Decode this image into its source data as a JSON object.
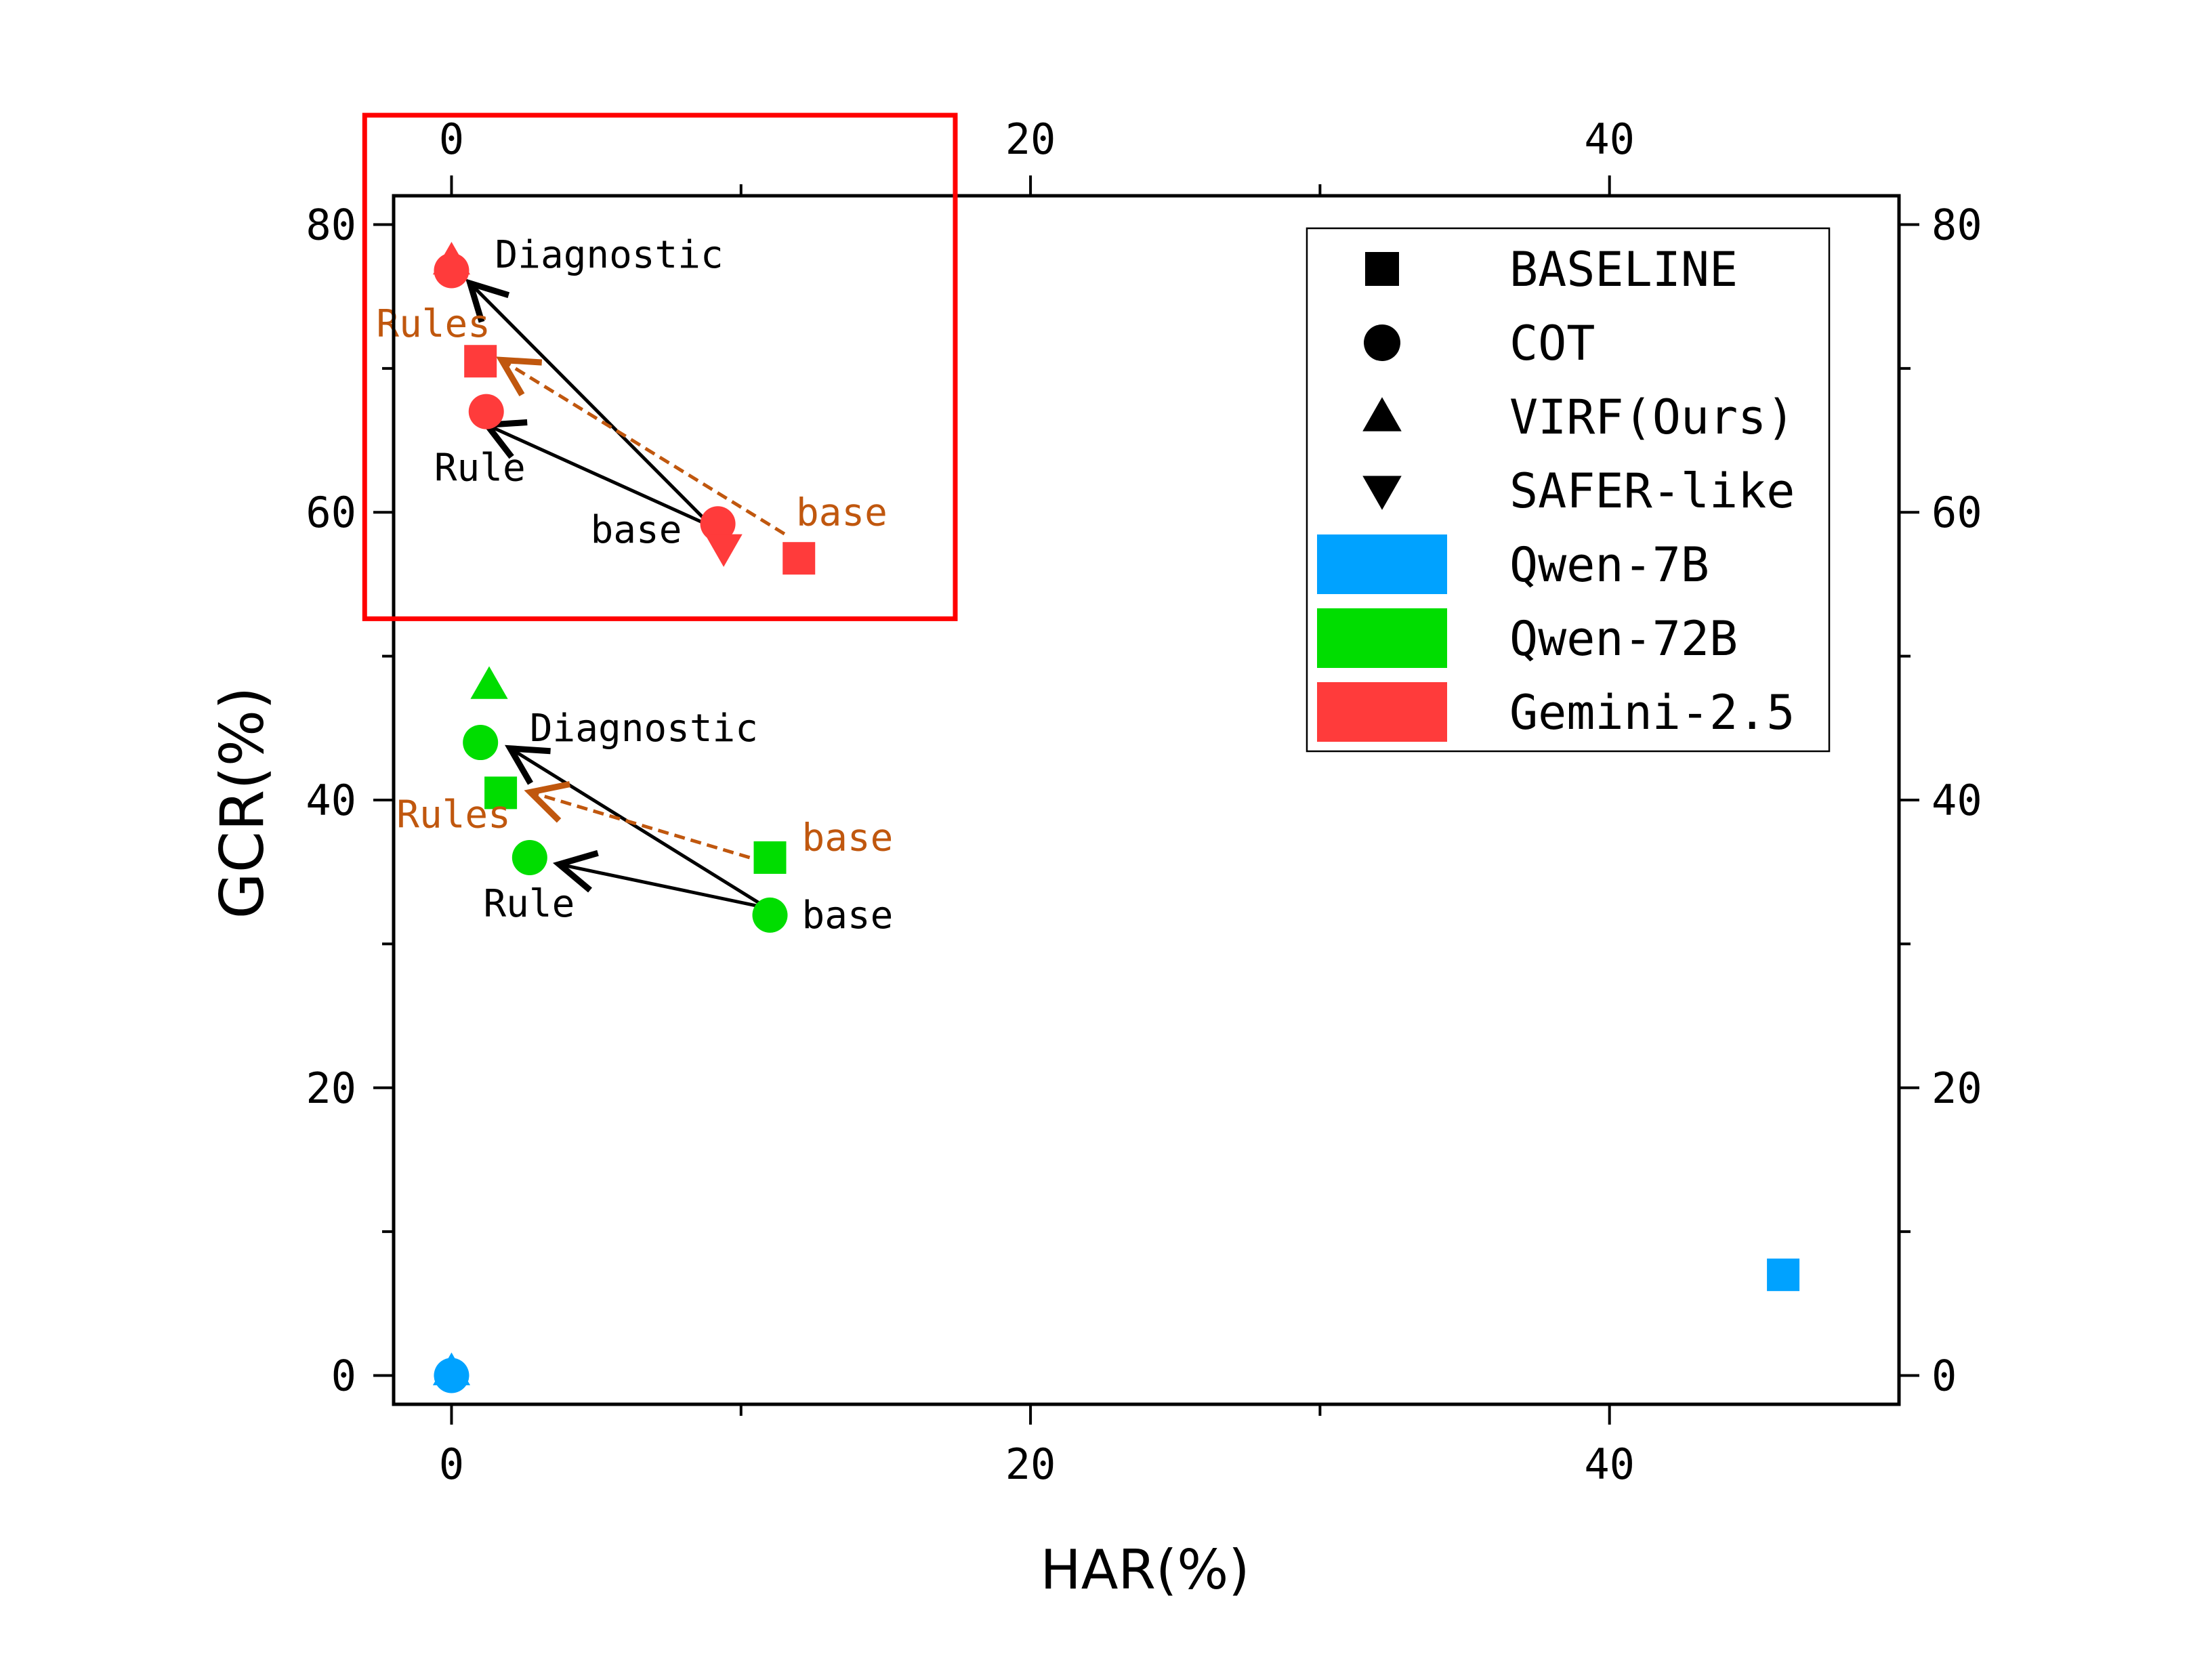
{
  "chart_data": {
    "type": "scatter",
    "title": "",
    "xlabel": "HAR(%)",
    "ylabel": "GCR(%)",
    "xlim": [
      -2,
      50
    ],
    "ylim": [
      -2,
      82
    ],
    "x_ticks": [
      0,
      20,
      40
    ],
    "x_minor_ticks": [
      10,
      30
    ],
    "y_ticks": [
      0,
      20,
      40,
      60,
      80
    ],
    "y_minor_ticks": [
      10,
      30,
      50,
      70
    ],
    "tick_labels": {
      "x_bottom": [
        "0",
        "20",
        "40"
      ],
      "x_top": [
        "0",
        "20",
        "40"
      ],
      "y_left": [
        "0",
        "20",
        "40",
        "60",
        "80"
      ],
      "y_right": [
        "0",
        "20",
        "40",
        "60",
        "80"
      ]
    },
    "legend": {
      "position": "top-right",
      "methods": [
        {
          "label": "BASELINE",
          "marker": "square"
        },
        {
          "label": "COT",
          "marker": "circle"
        },
        {
          "label": "VIRF(Ours)",
          "marker": "triangle-up"
        },
        {
          "label": "SAFER-like",
          "marker": "triangle-down"
        }
      ],
      "models": [
        {
          "label": "Qwen-7B",
          "color": "#00a2ff"
        },
        {
          "label": "Qwen-72B",
          "color": "#00dd00"
        },
        {
          "label": "Gemini-2.5",
          "color": "#ff3b3b"
        }
      ]
    },
    "series": [
      {
        "name": "Qwen-7B",
        "color": "#00a2ff",
        "points": [
          {
            "method": "BASELINE",
            "x": 46,
            "y": 7
          },
          {
            "method": "COT",
            "x": 0,
            "y": 0
          },
          {
            "method": "VIRF(Ours)",
            "x": 0,
            "y": 0.3
          }
        ]
      },
      {
        "name": "Qwen-72B",
        "color": "#00dd00",
        "points": [
          {
            "method": "VIRF(Ours)",
            "x": 1.3,
            "y": 48
          },
          {
            "method": "COT",
            "x": 1,
            "y": 44
          },
          {
            "method": "BASELINE",
            "x": 1.7,
            "y": 40.5
          },
          {
            "method": "BASELINE",
            "x": 11,
            "y": 36
          },
          {
            "method": "COT",
            "x": 2.7,
            "y": 36
          },
          {
            "method": "COT",
            "x": 11,
            "y": 32
          }
        ]
      },
      {
        "name": "Gemini-2.5",
        "color": "#ff3b3b",
        "points": [
          {
            "method": "VIRF(Ours)",
            "x": 0,
            "y": 77.5
          },
          {
            "method": "COT",
            "x": 0,
            "y": 76.8
          },
          {
            "method": "BASELINE",
            "x": 1,
            "y": 70.5
          },
          {
            "method": "COT",
            "x": 1.2,
            "y": 67
          },
          {
            "method": "COT",
            "x": 9.2,
            "y": 59.2
          },
          {
            "method": "SAFER-like",
            "x": 9.4,
            "y": 57.5
          },
          {
            "method": "BASELINE",
            "x": 12,
            "y": 56.8
          }
        ]
      }
    ],
    "annotations": [
      {
        "text": "Diagnostic",
        "color": "#000000",
        "x": 1.5,
        "y": 77
      },
      {
        "text": "Rules",
        "color": "#c0570e",
        "x": -2.6,
        "y": 72.2
      },
      {
        "text": "Rule",
        "color": "#000000",
        "x": -0.6,
        "y": 62.2
      },
      {
        "text": "base",
        "color": "#000000",
        "x": 4.8,
        "y": 57.9
      },
      {
        "text": "base",
        "color": "#c0570e",
        "x": 11.9,
        "y": 59.1
      },
      {
        "text": "Diagnostic",
        "color": "#000000",
        "x": 2.7,
        "y": 44.1
      },
      {
        "text": "Rules",
        "color": "#c0570e",
        "x": -1.9,
        "y": 38.1
      },
      {
        "text": "Rule",
        "color": "#000000",
        "x": 1.1,
        "y": 31.9
      },
      {
        "text": "base",
        "color": "#c0570e",
        "x": 12.1,
        "y": 36.5
      },
      {
        "text": "base",
        "color": "#000000",
        "x": 12.1,
        "y": 31.1
      }
    ],
    "arrows": [
      {
        "from": [
          9,
          59
        ],
        "to": [
          0.7,
          75.8
        ],
        "color": "#000000",
        "style": "solid"
      },
      {
        "from": [
          9,
          59
        ],
        "to": [
          1.3,
          66
        ],
        "color": "#000000",
        "style": "solid"
      },
      {
        "from": [
          11.5,
          58.5
        ],
        "to": [
          1.8,
          70.5
        ],
        "color": "#c0570e",
        "style": "dashed"
      },
      {
        "from": [
          10.9,
          32.5
        ],
        "to": [
          2.1,
          43.5
        ],
        "color": "#000000",
        "style": "solid"
      },
      {
        "from": [
          10.9,
          32.5
        ],
        "to": [
          3.8,
          35.5
        ],
        "color": "#000000",
        "style": "solid"
      },
      {
        "from": [
          10.3,
          36
        ],
        "to": [
          2.8,
          40.5
        ],
        "color": "#c0570e",
        "style": "dashed"
      }
    ],
    "highlight_box": {
      "x_range": [
        -3,
        17.4
      ],
      "y_range": [
        52.6,
        87.6
      ],
      "color": "#ff0000"
    }
  }
}
